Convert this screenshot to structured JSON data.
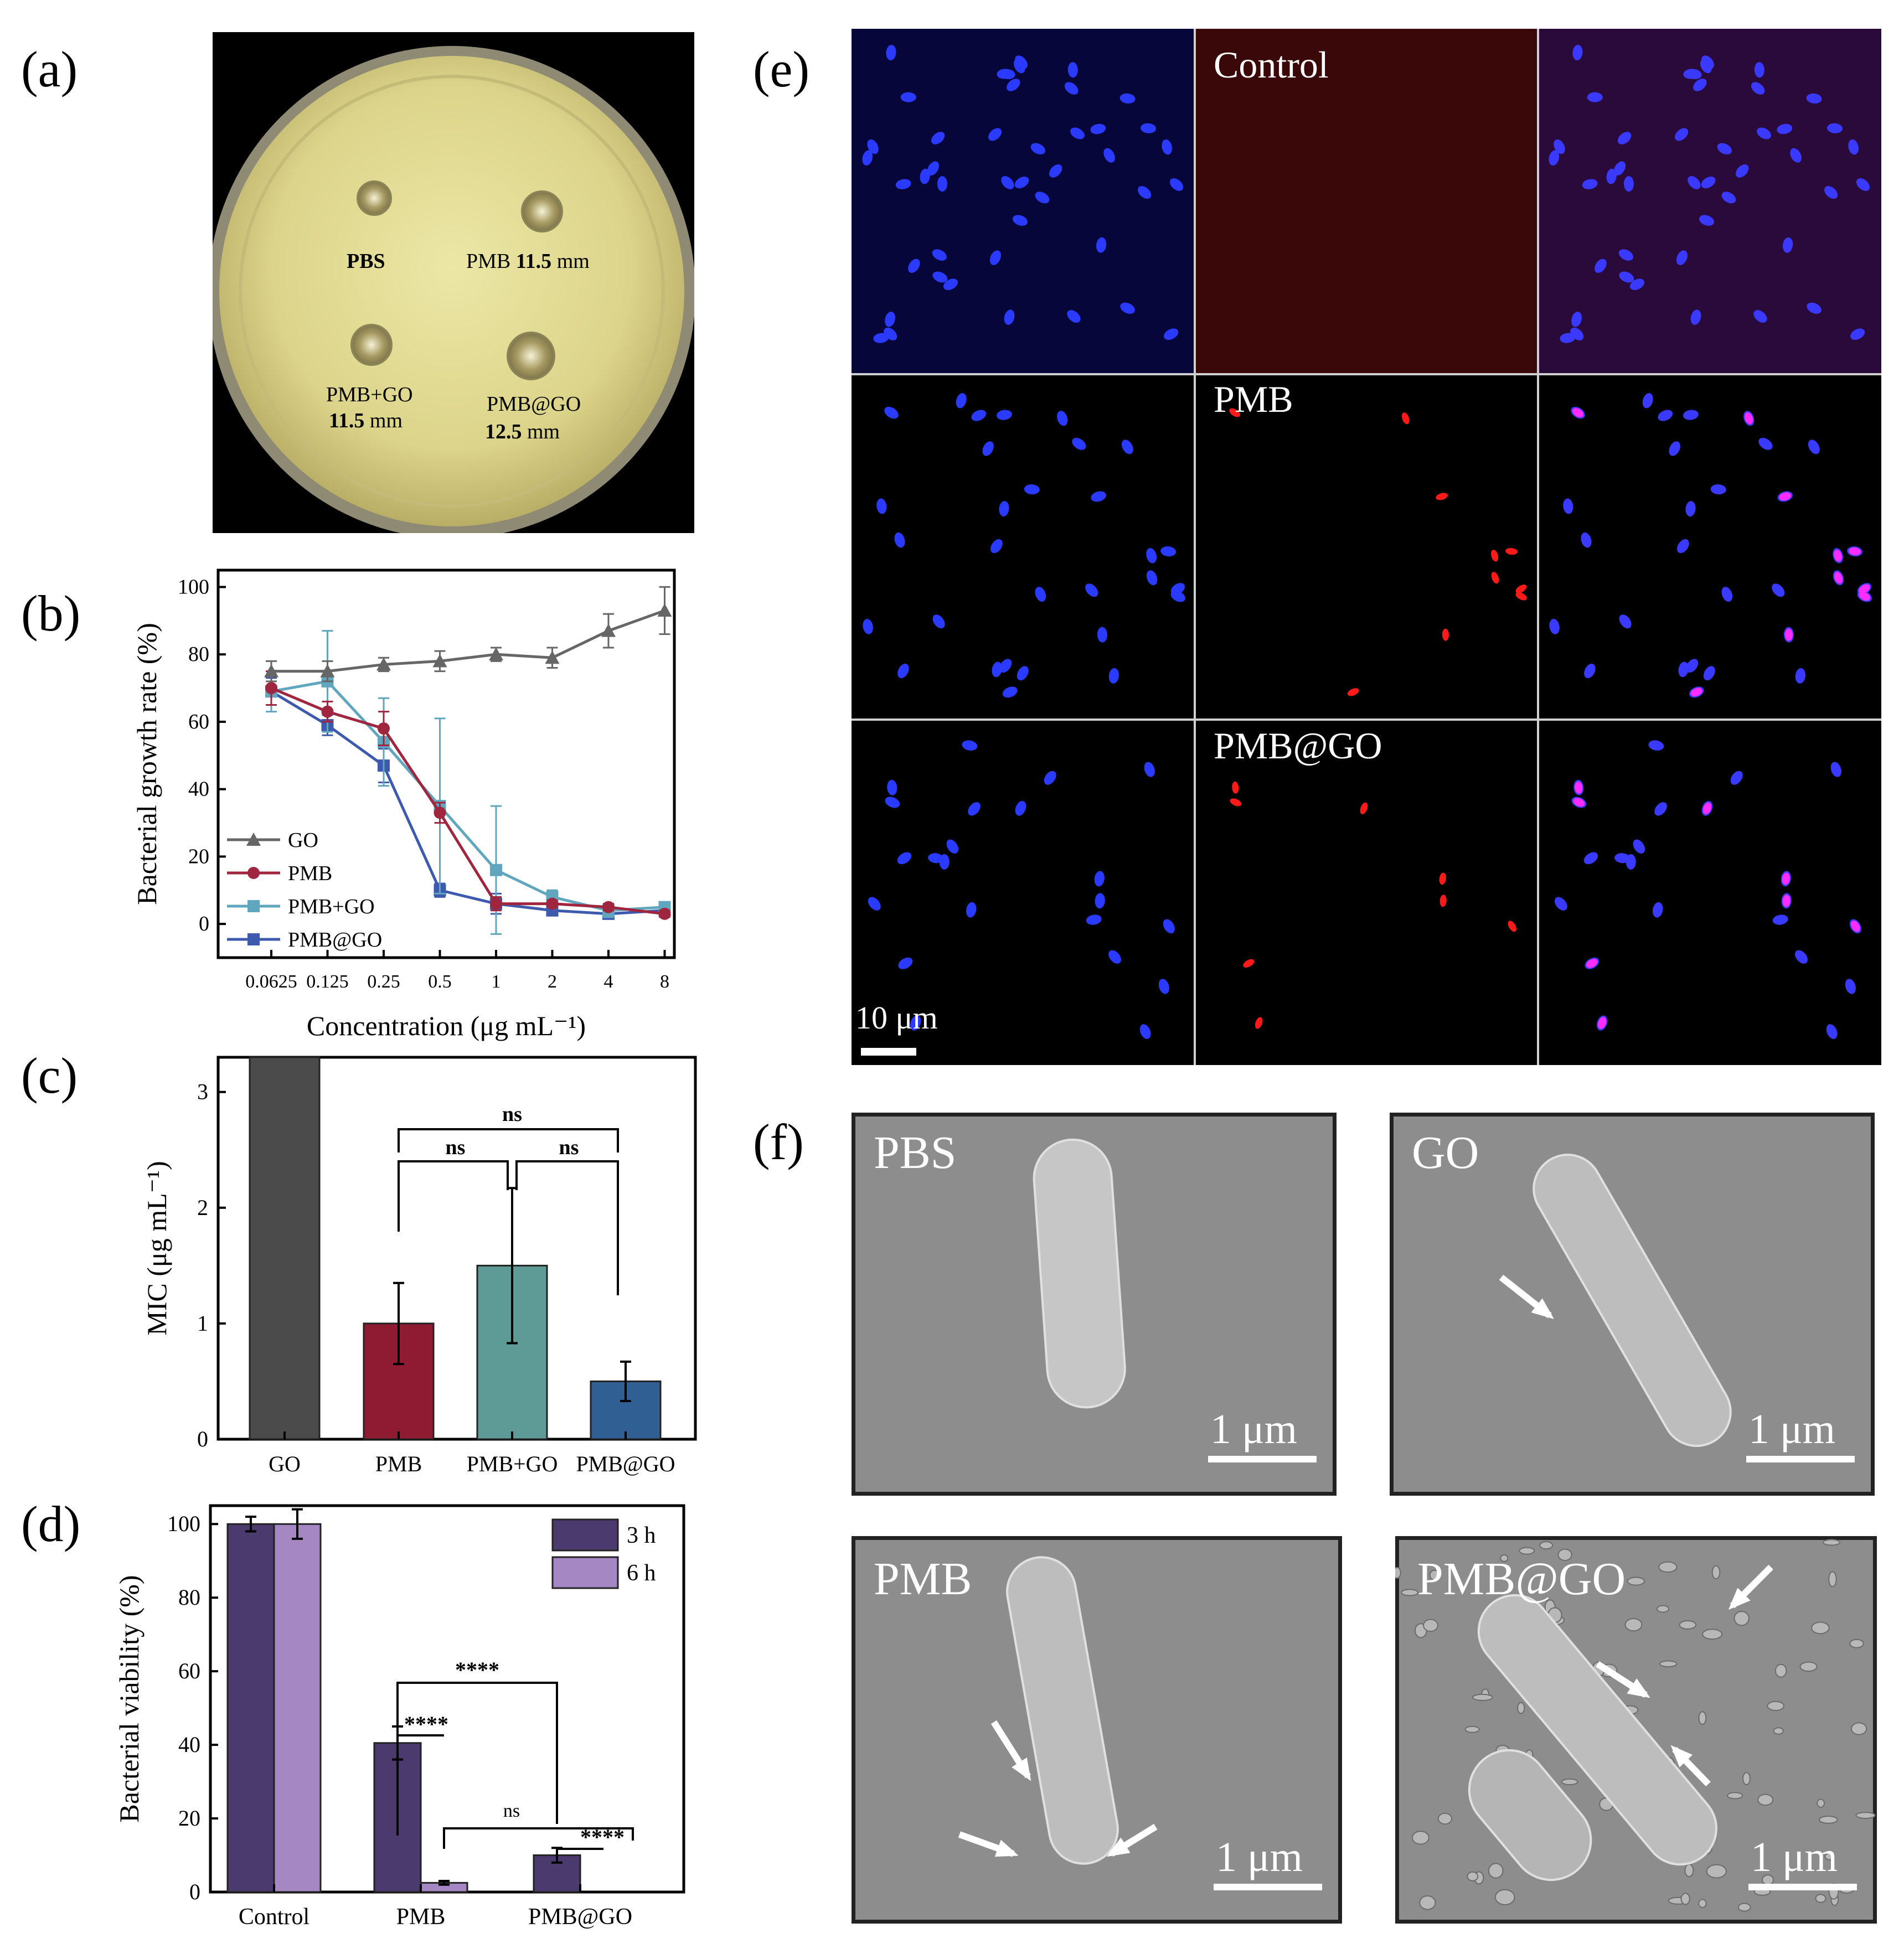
{
  "panels": {
    "a": {
      "letter": "(a)",
      "wells": [
        {
          "name": "PBS",
          "zone": ""
        },
        {
          "name": "PMB",
          "zone": "11.5",
          "unit": "mm"
        },
        {
          "name": "PMB+GO",
          "zone": "11.5",
          "unit": "mm"
        },
        {
          "name": "PMB@GO",
          "zone": "12.5",
          "unit": "mm"
        }
      ]
    },
    "b": {
      "letter": "(b)"
    },
    "c": {
      "letter": "(c)"
    },
    "d": {
      "letter": "(d)"
    },
    "e": {
      "letter": "(e)",
      "rows": [
        "Control",
        "PMB",
        "PMB@GO"
      ],
      "scale_bar": "10 μm"
    },
    "f": {
      "letter": "(f)",
      "images": [
        {
          "label": "PBS",
          "scale": "1 μm"
        },
        {
          "label": "GO",
          "scale": "1 μm"
        },
        {
          "label": "PMB",
          "scale": "1 μm"
        },
        {
          "label": "PMB@GO",
          "scale": "1 μm"
        }
      ]
    }
  },
  "chart_data": [
    {
      "panel": "b",
      "type": "line",
      "xlabel": "Concentration (μg mL⁻¹)",
      "ylabel": "Bacterial growth rate (%)",
      "x": [
        "0.0625",
        "0.125",
        "0.25",
        "0.5",
        "1",
        "2",
        "4",
        "8"
      ],
      "x_scale": "log2",
      "yticks": [
        "0",
        "20",
        "40",
        "60",
        "80",
        "100"
      ],
      "ylim": [
        -10,
        105
      ],
      "legend_position": "bottom-left",
      "series": [
        {
          "name": "GO",
          "color": "#666666",
          "marker": "triangle",
          "values": [
            75,
            75,
            77,
            78,
            80,
            79,
            87,
            93
          ],
          "errors": [
            3,
            3,
            2,
            3,
            2,
            3,
            5,
            7
          ]
        },
        {
          "name": "PMB",
          "color": "#a0253f",
          "marker": "circle",
          "values": [
            70,
            63,
            58,
            33,
            6,
            6,
            5,
            3
          ],
          "errors": [
            5,
            3,
            5,
            3,
            2,
            1,
            1,
            1
          ]
        },
        {
          "name": "PMB+GO",
          "color": "#5fa6be",
          "marker": "square",
          "values": [
            69,
            72,
            54,
            35,
            16,
            8,
            4,
            5
          ],
          "errors": [
            6,
            15,
            13,
            26,
            19,
            2,
            2,
            1
          ]
        },
        {
          "name": "PMB@GO",
          "color": "#3d5aae",
          "marker": "square",
          "values": [
            69,
            59,
            47,
            10,
            6,
            4,
            3,
            4
          ],
          "errors": [
            4,
            3,
            5,
            2,
            3,
            1,
            1,
            1
          ]
        }
      ]
    },
    {
      "panel": "c",
      "type": "bar",
      "ylabel": "MIC (μg mL⁻¹)",
      "categories": [
        "GO",
        "PMB",
        "PMB+GO",
        "PMB@GO"
      ],
      "values": [
        3.3,
        1.0,
        1.5,
        0.5
      ],
      "errors": [
        0,
        0.35,
        0.67,
        0.17
      ],
      "colors": [
        "#4b4b4b",
        "#8f1b33",
        "#5f9b96",
        "#2f5f93"
      ],
      "ylim": [
        0,
        3.3
      ],
      "yticks": [
        "0",
        "1",
        "2",
        "3"
      ],
      "significance": [
        {
          "from": 1,
          "to": 2,
          "label": "ns"
        },
        {
          "from": 2,
          "to": 3,
          "label": "ns"
        },
        {
          "from": 1,
          "to": 3,
          "label": "ns"
        }
      ]
    },
    {
      "panel": "d",
      "type": "bar",
      "ylabel": "Bacterial viability (%)",
      "categories": [
        "Control",
        "PMB",
        "PMB@GO"
      ],
      "ylim": [
        0,
        105
      ],
      "yticks": [
        "0",
        "20",
        "40",
        "60",
        "80",
        "100"
      ],
      "legend_position": "top-right",
      "series": [
        {
          "name": "3 h",
          "color": "#4b3a6e",
          "values": [
            100,
            40.5,
            10
          ],
          "errors": [
            2,
            4.5,
            2
          ]
        },
        {
          "name": "6 h",
          "color": "#a587c4",
          "values": [
            100,
            2.5,
            0
          ],
          "errors": [
            4,
            0.5,
            0
          ]
        }
      ],
      "significance": [
        {
          "label": "****"
        },
        {
          "label": "****"
        },
        {
          "label": "ns"
        },
        {
          "label": "****"
        }
      ]
    }
  ]
}
